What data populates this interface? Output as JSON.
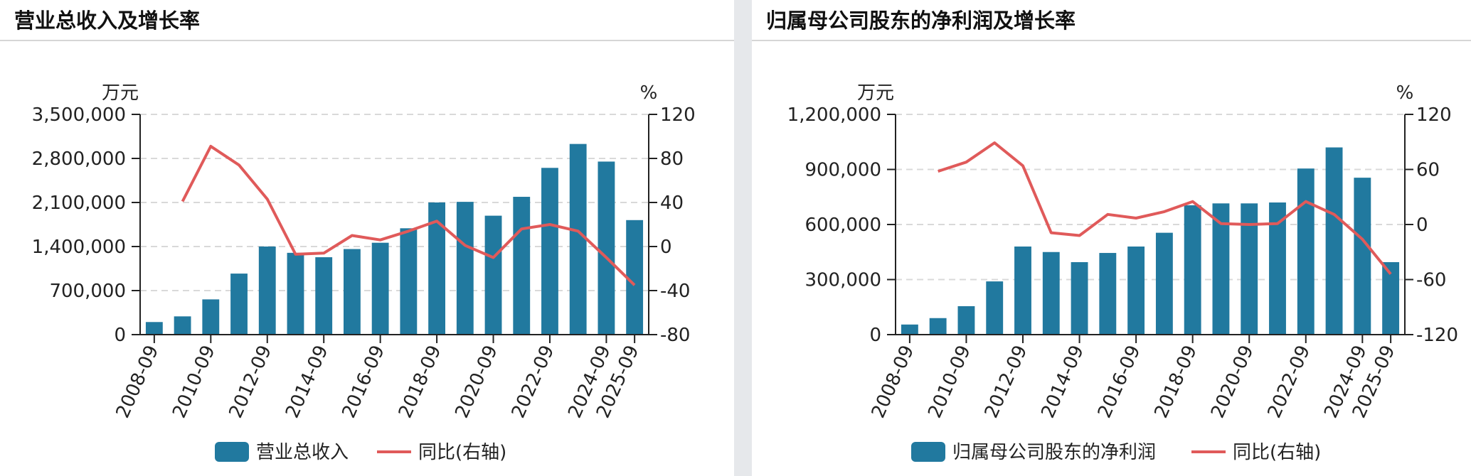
{
  "colors": {
    "bar": "#21799f",
    "line": "#e05a5a",
    "grid": "#d9d9d9",
    "axis": "#222222",
    "text": "#222222"
  },
  "chart_data": [
    {
      "type": "bar",
      "title": "营业总收入及增长率",
      "y_unit": "万元",
      "y2_unit": "%",
      "ylim": [
        0,
        3500000
      ],
      "y_ticks": [
        0,
        700000,
        1400000,
        2100000,
        2800000,
        3500000
      ],
      "y_tick_labels": [
        "0",
        "700,000",
        "1,400,000",
        "2,100,000",
        "2,800,000",
        "3,500,000"
      ],
      "y2lim": [
        -80,
        120
      ],
      "y2_ticks": [
        -80,
        -40,
        0,
        40,
        80,
        120
      ],
      "y2_tick_labels": [
        "-80",
        "-40",
        "0",
        "40",
        "80",
        "120"
      ],
      "categories": [
        "2008-09",
        "2009-09",
        "2010-09",
        "2011-09",
        "2012-09",
        "2013-09",
        "2014-09",
        "2015-09",
        "2016-09",
        "2017-09",
        "2018-09",
        "2019-09",
        "2020-09",
        "2021-09",
        "2022-09",
        "2023-09",
        "2024-09",
        "2025-09"
      ],
      "x_tick_labels": [
        "2008-09",
        "",
        "2010-09",
        "",
        "2012-09",
        "",
        "2014-09",
        "",
        "2016-09",
        "",
        "2018-09",
        "",
        "2020-09",
        "",
        "2022-09",
        "",
        "2024-09",
        "2025-09"
      ],
      "series": [
        {
          "name": "营业总收入",
          "axis": "left",
          "kind": "bar",
          "values": [
            200000,
            290000,
            560000,
            970000,
            1400000,
            1300000,
            1230000,
            1360000,
            1460000,
            1690000,
            2100000,
            2110000,
            1890000,
            2190000,
            2650000,
            3030000,
            2750000,
            1820000
          ]
        },
        {
          "name": "同比(右轴)",
          "axis": "right",
          "kind": "line",
          "values": [
            null,
            41,
            91,
            74,
            43,
            -7,
            -6,
            10,
            6,
            14,
            23,
            1,
            -10,
            16,
            20,
            14,
            -10,
            -35
          ]
        }
      ],
      "legend": [
        "营业总收入",
        "同比(右轴)"
      ],
      "legend_position": "bottom-center"
    },
    {
      "type": "bar",
      "title": "归属母公司股东的净利润及增长率",
      "y_unit": "万元",
      "y2_unit": "%",
      "ylim": [
        0,
        1200000
      ],
      "y_ticks": [
        0,
        300000,
        600000,
        900000,
        1200000
      ],
      "y_tick_labels": [
        "0",
        "300,000",
        "600,000",
        "900,000",
        "1,200,000"
      ],
      "y2lim": [
        -120,
        120
      ],
      "y2_ticks": [
        -120,
        -60,
        0,
        60,
        120
      ],
      "y2_tick_labels": [
        "-120",
        "-60",
        "0",
        "60",
        "120"
      ],
      "categories": [
        "2008-09",
        "2009-09",
        "2010-09",
        "2011-09",
        "2012-09",
        "2013-09",
        "2014-09",
        "2015-09",
        "2016-09",
        "2017-09",
        "2018-09",
        "2019-09",
        "2020-09",
        "2021-09",
        "2022-09",
        "2023-09",
        "2024-09",
        "2025-09"
      ],
      "x_tick_labels": [
        "2008-09",
        "",
        "2010-09",
        "",
        "2012-09",
        "",
        "2014-09",
        "",
        "2016-09",
        "",
        "2018-09",
        "",
        "2020-09",
        "",
        "2022-09",
        "",
        "2024-09",
        "2025-09"
      ],
      "series": [
        {
          "name": "归属母公司股东的净利润",
          "axis": "left",
          "kind": "bar",
          "values": [
            55000,
            90000,
            155000,
            290000,
            480000,
            450000,
            395000,
            445000,
            480000,
            555000,
            705000,
            715000,
            715000,
            720000,
            905000,
            1020000,
            855000,
            395000
          ]
        },
        {
          "name": "同比(右轴)",
          "axis": "right",
          "kind": "line",
          "values": [
            null,
            58,
            68,
            89,
            64,
            -9,
            -12,
            11,
            7,
            14,
            25,
            1,
            0,
            1,
            25,
            11,
            -16,
            -54
          ]
        }
      ],
      "legend": [
        "归属母公司股东的净利润",
        "同比(右轴)"
      ],
      "legend_position": "bottom-center"
    }
  ]
}
